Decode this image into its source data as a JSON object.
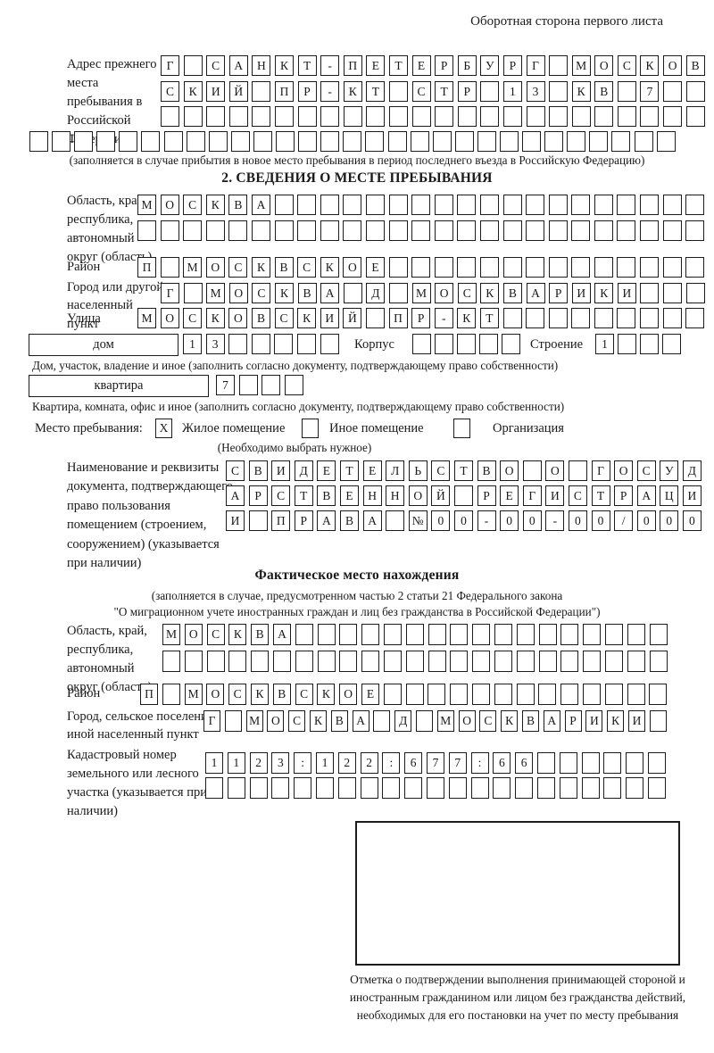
{
  "header": {
    "note": "Оборотная сторона первого листа"
  },
  "colors": {
    "ink": "#1c1c1c",
    "paper": "#ffffff"
  },
  "prev_address": {
    "label": "Адрес прежнего места пребывания в Российской Федерации",
    "row1": "Г САНКТ-ПЕТЕРБУРГ МОСКОВ",
    "row2": "СКИЙ ПР-КТ СТР 13 КВ 7",
    "row3": "",
    "row4": "",
    "note": "(заполняется в случае прибытия в новое место пребывания в период последнего въезда в Российскую Федерацию)"
  },
  "section2": {
    "title": "2. СВЕДЕНИЯ О МЕСТЕ ПРЕБЫВАНИЯ",
    "region": {
      "label": "Область, край, республика, автономный округ (область)",
      "row1": "МОСКВА",
      "row2": ""
    },
    "district": {
      "label": "Район",
      "row": "П МОСКВСКОЕ"
    },
    "city": {
      "label": "Город или другой населенный пункт",
      "row": "Г МОСКВА Д МОСКВАРИКИ"
    },
    "street": {
      "label": "Улица",
      "row": "МОСКОВСКИЙ ПР-КТ"
    },
    "house": {
      "type_label": "дом",
      "number": "13",
      "korpus_label": "Корпус",
      "korpus_value": "",
      "stroenie_label": "Строение",
      "stroenie_value": "1",
      "caption": "Дом, участок, владение и иное (заполнить согласно документу, подтверждающему право собственности)"
    },
    "apartment": {
      "type_label": "квартира",
      "number": "7",
      "caption": "Квартира, комната, офис и иное (заполнить согласно документу, подтверждающему право собственности)"
    },
    "stay_type": {
      "label": "Место пребывания:",
      "options": [
        {
          "label": "Жилое помещение",
          "mark": "X"
        },
        {
          "label": "Иное помещение",
          "mark": ""
        },
        {
          "label": "Организация",
          "mark": ""
        }
      ],
      "hint": "(Необходимо выбрать нужное)"
    },
    "document": {
      "label": "Наименование и реквизиты документа, подтверждающего право пользования помещением (строением, сооружением) (указывается при наличии)",
      "row1": "СВИДЕТЕЛЬСТВО О ГОСУД",
      "row2": "АРСТВЕННОЙ РЕГИСТРАЦИ",
      "row3": "И ПРАВА №00-00-00/000"
    }
  },
  "actual_location": {
    "title": "Фактическое место нахождения",
    "note1": "(заполняется в случае, предусмотренном частью 2 статьи 21 Федерального закона",
    "note2": "\"О миграционном учете иностранных граждан и лиц без гражданства в Российской Федерации\")",
    "region": {
      "label": "Область, край, республика, автономный округ (область)",
      "row1": "МОСКВА",
      "row2": ""
    },
    "district": {
      "label": "Район",
      "row": "П МОСКВСКОЕ"
    },
    "city": {
      "label": "Город, сельское поселение, иной населенный пункт",
      "row": "Г МОСКВА Д МОСКВАРИКИ"
    },
    "cadastral": {
      "label": "Кадастровый номер земельного или лесного участка (указывается при наличии)",
      "row1": "1123:122:677:66",
      "row2": ""
    },
    "stamp_caption": "Отметка о подтверждении выполнения принимающей стороной и иностранным гражданином или лицом без гражданства действий, необходимых для его постановки на учет по месту пребывания"
  }
}
